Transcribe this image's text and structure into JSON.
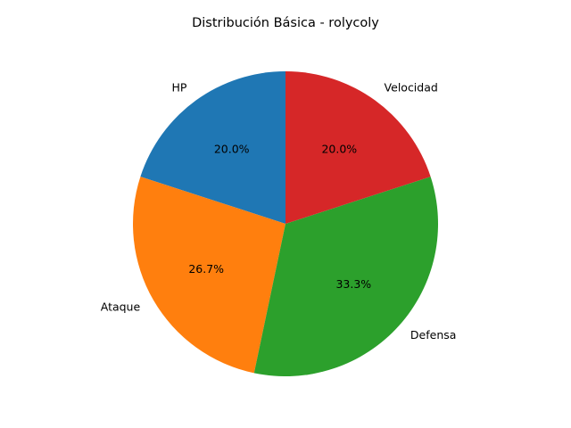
{
  "chart_data": {
    "type": "pie",
    "title": "Distribución Básica - rolycoly",
    "categories": [
      "HP",
      "Ataque",
      "Defensa",
      "Velocidad"
    ],
    "values": [
      20.0,
      26.7,
      33.3,
      20.0
    ],
    "value_labels": [
      "20.0%",
      "26.7%",
      "33.3%",
      "20.0%"
    ],
    "colors": [
      "#1f77b4",
      "#ff7f0e",
      "#2ca02c",
      "#d62728"
    ],
    "start_angle_deg": 90,
    "direction": "counterclockwise",
    "legend": "none"
  }
}
